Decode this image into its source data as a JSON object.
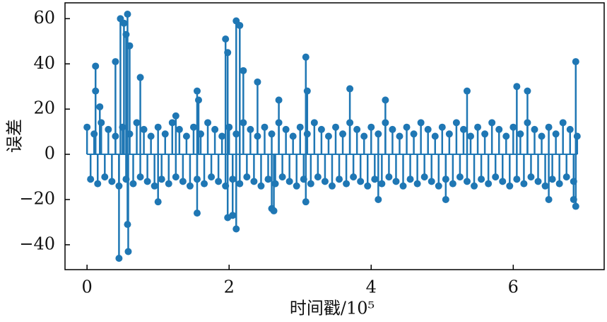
{
  "chart_data": {
    "type": "stem",
    "xlabel": "时间戳/10⁵",
    "ylabel": "误差",
    "color": "#1f77b4",
    "xlim": [
      -0.31,
      7.28
    ],
    "ylim": [
      -51,
      67
    ],
    "xticks": [
      0,
      2,
      4,
      6
    ],
    "yticks": [
      {
        "value": -40,
        "label": "−40"
      },
      {
        "value": -20,
        "label": "−20"
      },
      0,
      20,
      40,
      60
    ],
    "x": [
      0,
      0.05,
      0.1,
      0.15,
      0.2,
      0.25,
      0.3,
      0.35,
      0.4,
      0.45,
      0.5,
      0.55,
      0.6,
      0.65,
      0.7,
      0.75,
      0.8,
      0.85,
      0.9,
      0.95,
      1,
      1.05,
      1.1,
      1.15,
      1.2,
      1.25,
      1.3,
      1.35,
      1.4,
      1.45,
      1.5,
      1.55,
      1.6,
      1.65,
      1.7,
      1.75,
      1.8,
      1.85,
      1.9,
      1.95,
      2,
      2.05,
      2.1,
      2.15,
      2.2,
      2.25,
      2.3,
      2.35,
      2.4,
      2.45,
      2.5,
      2.55,
      2.6,
      2.65,
      2.7,
      2.75,
      2.8,
      2.85,
      2.9,
      2.95,
      3,
      3.05,
      3.1,
      3.15,
      3.2,
      3.25,
      3.3,
      3.35,
      3.4,
      3.45,
      3.5,
      3.55,
      3.6,
      3.65,
      3.7,
      3.75,
      3.8,
      3.85,
      3.9,
      3.95,
      4,
      4.05,
      4.1,
      4.15,
      4.2,
      4.25,
      4.3,
      4.35,
      4.4,
      4.45,
      4.5,
      4.55,
      4.6,
      4.65,
      4.7,
      4.75,
      4.8,
      4.85,
      4.9,
      4.95,
      5,
      5.05,
      5.1,
      5.15,
      5.2,
      5.25,
      5.3,
      5.35,
      5.4,
      5.45,
      5.5,
      5.55,
      5.6,
      5.65,
      5.7,
      5.75,
      5.8,
      5.85,
      5.9,
      5.95,
      6,
      6.05,
      6.1,
      6.15,
      6.2,
      6.25,
      6.3,
      6.35,
      6.4,
      6.45,
      6.5,
      6.55,
      6.6,
      6.65,
      6.7,
      6.75,
      6.8,
      6.85,
      6.9,
      0.12,
      0.12,
      0.18,
      0.47,
      0.52,
      0.57,
      0.55,
      0.6,
      0.45,
      0.58,
      0.57,
      0.4,
      0.75,
      1.0,
      1.55,
      1.55,
      1.57,
      1.95,
      1.98,
      2.1,
      2.15,
      2.1,
      1.98,
      2.05,
      2.2,
      2.4,
      2.6,
      2.63,
      3.08,
      3.08,
      3.1,
      3.7,
      4.1,
      4.2,
      5.05,
      5.35,
      6.05,
      6.2,
      6.5,
      6.88,
      6.88,
      6.85,
      1.25,
      2.7
    ],
    "values": [
      12,
      -11,
      9,
      -13,
      14,
      -10,
      11,
      -12,
      8,
      -14,
      12,
      -11,
      9,
      -13,
      14,
      -10,
      11,
      -12,
      8,
      -14,
      12,
      -11,
      9,
      -13,
      14,
      -10,
      11,
      -12,
      8,
      -14,
      12,
      -11,
      9,
      -13,
      14,
      -10,
      11,
      -12,
      8,
      -14,
      12,
      -11,
      9,
      -13,
      14,
      -10,
      11,
      -12,
      8,
      -14,
      12,
      -11,
      9,
      -13,
      14,
      -10,
      11,
      -12,
      8,
      -14,
      12,
      -11,
      9,
      -13,
      14,
      -10,
      11,
      -12,
      8,
      -14,
      12,
      -11,
      9,
      -13,
      14,
      -10,
      11,
      -12,
      8,
      -14,
      12,
      -11,
      9,
      -13,
      14,
      -10,
      11,
      -12,
      8,
      -14,
      12,
      -11,
      9,
      -13,
      14,
      -10,
      11,
      -12,
      8,
      -14,
      12,
      -11,
      9,
      -13,
      14,
      -10,
      11,
      -12,
      8,
      -14,
      12,
      -11,
      9,
      -13,
      14,
      -10,
      11,
      -12,
      8,
      -14,
      12,
      -11,
      9,
      -13,
      14,
      -10,
      11,
      -12,
      8,
      -14,
      12,
      -11,
      9,
      -13,
      14,
      -10,
      11,
      -12,
      8,
      39,
      28,
      21,
      60,
      58,
      62,
      53,
      48,
      -46,
      -43,
      -31,
      41,
      34,
      -21,
      -26,
      28,
      24,
      51,
      45,
      59,
      57,
      -33,
      -28,
      -27,
      37,
      32,
      -24,
      -25,
      43,
      -21,
      28,
      29,
      -20,
      24,
      -20,
      28,
      30,
      28,
      -20,
      41,
      -23,
      -20,
      17,
      24
    ]
  }
}
